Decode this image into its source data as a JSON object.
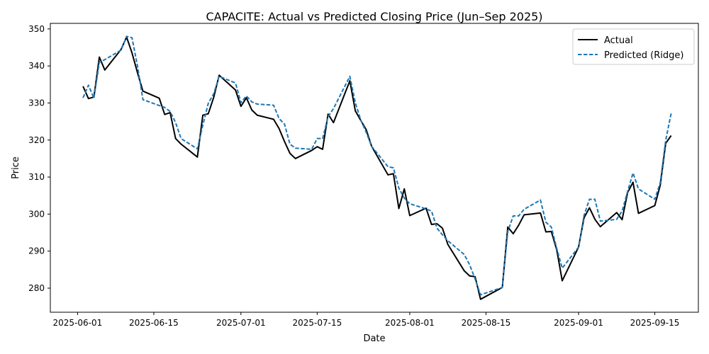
{
  "chart_data": {
    "type": "line",
    "title": "CAPACITE: Actual vs Predicted Closing Price (Jun–Sep 2025)",
    "xlabel": "Date",
    "ylabel": "Price",
    "x_type": "date",
    "xlim": [
      "2025-05-27",
      "2025-09-23"
    ],
    "ylim": [
      273.5,
      351.5
    ],
    "x_ticks": [
      "2025-06-01",
      "2025-06-15",
      "2025-07-01",
      "2025-07-15",
      "2025-08-01",
      "2025-08-15",
      "2025-09-01",
      "2025-09-15"
    ],
    "y_ticks": [
      280,
      290,
      300,
      310,
      320,
      330,
      340,
      350
    ],
    "grid": false,
    "legend_position": "top-right",
    "x": [
      "2025-06-02",
      "2025-06-03",
      "2025-06-04",
      "2025-06-05",
      "2025-06-06",
      "2025-06-09",
      "2025-06-10",
      "2025-06-11",
      "2025-06-12",
      "2025-06-13",
      "2025-06-16",
      "2025-06-17",
      "2025-06-18",
      "2025-06-19",
      "2025-06-20",
      "2025-06-23",
      "2025-06-24",
      "2025-06-25",
      "2025-06-26",
      "2025-06-27",
      "2025-06-30",
      "2025-07-01",
      "2025-07-02",
      "2025-07-03",
      "2025-07-04",
      "2025-07-07",
      "2025-07-08",
      "2025-07-09",
      "2025-07-10",
      "2025-07-11",
      "2025-07-14",
      "2025-07-15",
      "2025-07-16",
      "2025-07-17",
      "2025-07-18",
      "2025-07-21",
      "2025-07-22",
      "2025-07-23",
      "2025-07-24",
      "2025-07-25",
      "2025-07-28",
      "2025-07-29",
      "2025-07-30",
      "2025-07-31",
      "2025-08-01",
      "2025-08-04",
      "2025-08-05",
      "2025-08-06",
      "2025-08-07",
      "2025-08-08",
      "2025-08-11",
      "2025-08-12",
      "2025-08-13",
      "2025-08-14",
      "2025-08-18",
      "2025-08-19",
      "2025-08-20",
      "2025-08-21",
      "2025-08-22",
      "2025-08-25",
      "2025-08-26",
      "2025-08-27",
      "2025-08-28",
      "2025-08-29",
      "2025-09-01",
      "2025-09-02",
      "2025-09-03",
      "2025-09-04",
      "2025-09-05",
      "2025-09-08",
      "2025-09-09",
      "2025-09-10",
      "2025-09-11",
      "2025-09-12",
      "2025-09-15",
      "2025-09-16",
      "2025-09-17",
      "2025-09-18"
    ],
    "series": [
      {
        "name": "Actual",
        "color": "#000000",
        "style": "solid",
        "values": [
          334.5,
          331.2,
          331.6,
          342.4,
          338.9,
          344.5,
          347.8,
          343.5,
          338.2,
          333.2,
          331.3,
          326.9,
          327.4,
          320.4,
          318.9,
          315.4,
          326.7,
          327.1,
          331.5,
          337.5,
          333.5,
          329.1,
          331.4,
          328.1,
          326.7,
          325.6,
          323.1,
          319.6,
          316.4,
          315.0,
          317.2,
          318.2,
          317.5,
          327.0,
          324.7,
          336.0,
          327.9,
          325.3,
          322.8,
          318.3,
          310.6,
          310.9,
          301.5,
          306.8,
          299.6,
          301.6,
          297.2,
          297.4,
          296.2,
          291.8,
          284.7,
          283.3,
          283.1,
          277.0,
          280.2,
          296.5,
          294.7,
          297.0,
          299.8,
          300.3,
          295.2,
          295.3,
          290.3,
          282.0,
          291.1,
          299.0,
          301.7,
          298.6,
          296.6,
          300.4,
          298.5,
          305.8,
          308.6,
          300.2,
          302.3,
          307.8,
          319.1,
          321.2
        ]
      },
      {
        "name": "Predicted (Ridge)",
        "color": "#1f77b4",
        "style": "dashed",
        "values": [
          331.4,
          334.8,
          331.3,
          341.0,
          341.7,
          344.3,
          348.0,
          347.6,
          340.0,
          330.9,
          329.3,
          328.8,
          327.7,
          324.7,
          320.4,
          317.6,
          324.0,
          329.9,
          332.5,
          337.2,
          335.4,
          330.1,
          331.9,
          330.3,
          329.7,
          329.4,
          325.8,
          324.3,
          318.9,
          317.8,
          317.5,
          320.4,
          320.4,
          326.3,
          328.5,
          337.2,
          330.1,
          325.4,
          322.1,
          318.3,
          312.8,
          312.5,
          307.0,
          304.3,
          302.8,
          301.4,
          300.8,
          296.2,
          294.4,
          292.8,
          289.1,
          286.3,
          282.5,
          278.2,
          280.2,
          295.3,
          299.5,
          299.5,
          301.3,
          303.8,
          297.8,
          296.5,
          290.7,
          285.4,
          291.1,
          299.6,
          304.0,
          304.0,
          298.1,
          298.6,
          300.8,
          306.1,
          311.1,
          306.8,
          304.0,
          308.5,
          319.9,
          327.2
        ]
      }
    ]
  }
}
